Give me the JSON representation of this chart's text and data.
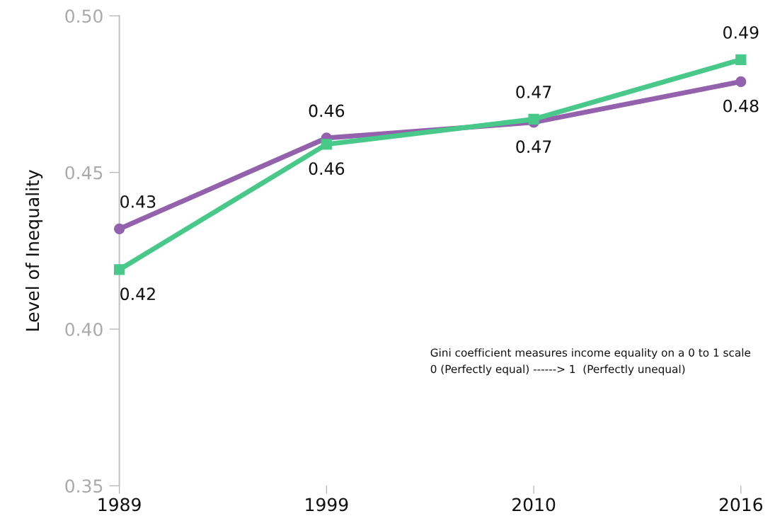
{
  "chart_data": {
    "type": "line",
    "ylabel": "Level of Inequality",
    "categories": [
      "1989",
      "1999",
      "2010",
      "2016"
    ],
    "series": [
      {
        "color": "#9461ad",
        "marker": "circle",
        "values": [
          0.432,
          0.461,
          0.466,
          0.479
        ],
        "value_labels": [
          "0.43",
          "0.46",
          "0.47",
          "0.48"
        ]
      },
      {
        "color": "#48c98a",
        "marker": "square",
        "values": [
          0.419,
          0.459,
          0.467,
          0.486
        ],
        "value_labels": [
          "0.42",
          "0.46",
          "0.47",
          "0.49"
        ]
      }
    ],
    "ylim": [
      0.35,
      0.5
    ],
    "yticks": [
      {
        "value": 0.35,
        "label": "0.35"
      },
      {
        "value": 0.4,
        "label": "0.40"
      },
      {
        "value": 0.45,
        "label": "0.45"
      },
      {
        "value": 0.5,
        "label": "0.50"
      }
    ],
    "grid": false,
    "legend": false,
    "line_style": "solid",
    "annotations": [
      "Gini coefficient measures income equality on a 0 to 1 scale",
      "0 (Perfectly equal) ------> 1  (Perfectly unequal)"
    ]
  }
}
